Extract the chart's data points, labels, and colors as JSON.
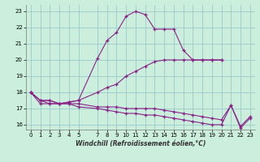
{
  "xlabel": "Windchill (Refroidissement éolien,°C)",
  "bg_color": "#cceedd",
  "grid_color": "#99cccc",
  "line_color": "#882288",
  "ylim": [
    15.7,
    23.4
  ],
  "xlim": [
    -0.5,
    23.5
  ],
  "yticks": [
    16,
    17,
    18,
    19,
    20,
    21,
    22,
    23
  ],
  "xticks": [
    0,
    1,
    2,
    3,
    4,
    5,
    7,
    8,
    9,
    10,
    11,
    12,
    13,
    14,
    15,
    16,
    17,
    18,
    19,
    20,
    21,
    22,
    23
  ],
  "curve1_x": [
    0,
    1,
    2,
    3,
    4,
    5,
    7,
    8,
    9,
    10,
    11,
    12,
    13,
    14,
    15,
    16,
    17,
    18,
    19,
    20
  ],
  "curve1_y": [
    18.0,
    17.5,
    17.5,
    17.3,
    17.4,
    17.5,
    20.1,
    21.2,
    21.7,
    22.7,
    23.0,
    22.8,
    21.9,
    21.9,
    21.9,
    20.6,
    20.0,
    20.0,
    20.0,
    20.0
  ],
  "curve2_x": [
    0,
    1,
    2,
    3,
    4,
    5,
    7,
    8,
    9,
    10,
    11,
    12,
    13,
    14,
    15,
    16,
    17,
    18,
    19,
    20
  ],
  "curve2_y": [
    18.0,
    17.5,
    17.5,
    17.3,
    17.4,
    17.5,
    18.0,
    18.3,
    18.5,
    19.0,
    19.3,
    19.6,
    19.9,
    20.0,
    20.0,
    20.0,
    20.0,
    20.0,
    20.0,
    20.0
  ],
  "curve3_x": [
    0,
    1,
    2,
    3,
    4,
    5,
    7,
    8,
    9,
    10,
    11,
    12,
    13,
    14,
    15,
    16,
    17,
    18,
    19,
    20,
    21,
    22,
    23
  ],
  "curve3_y": [
    18.0,
    17.5,
    17.3,
    17.3,
    17.3,
    17.3,
    17.1,
    17.1,
    17.1,
    17.0,
    17.0,
    17.0,
    17.0,
    16.9,
    16.8,
    16.7,
    16.6,
    16.5,
    16.4,
    16.3,
    17.2,
    15.9,
    16.5
  ],
  "curve4_x": [
    0,
    1,
    2,
    3,
    4,
    5,
    7,
    8,
    9,
    10,
    11,
    12,
    13,
    14,
    15,
    16,
    17,
    18,
    19,
    20,
    21,
    22,
    23
  ],
  "curve4_y": [
    18.0,
    17.3,
    17.3,
    17.3,
    17.3,
    17.1,
    17.0,
    16.9,
    16.8,
    16.7,
    16.7,
    16.6,
    16.6,
    16.5,
    16.4,
    16.3,
    16.2,
    16.1,
    16.0,
    16.0,
    17.2,
    15.8,
    16.4
  ]
}
